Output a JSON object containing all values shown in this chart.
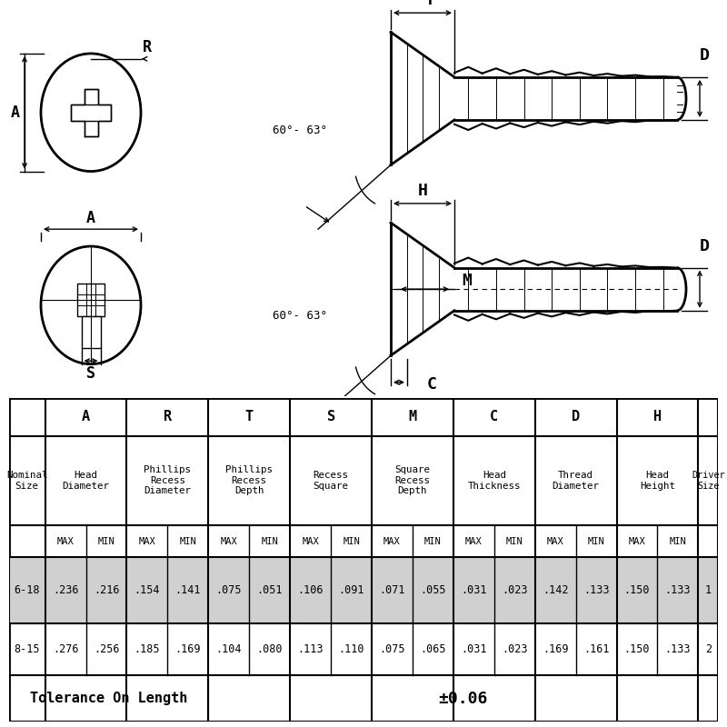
{
  "bg_color": "#ffffff",
  "row1_label": "6-18",
  "row1_data": [
    ".236",
    ".216",
    ".154",
    ".141",
    ".075",
    ".051",
    ".106",
    ".091",
    ".071",
    ".055",
    ".031",
    ".023",
    ".142",
    ".133",
    ".150",
    ".133",
    "1"
  ],
  "row2_label": "8-15",
  "row2_data": [
    ".276",
    ".256",
    ".185",
    ".169",
    ".104",
    ".080",
    ".113",
    ".110",
    ".075",
    ".065",
    ".031",
    ".023",
    ".169",
    ".161",
    ".150",
    ".133",
    "2"
  ],
  "tolerance_label": "Tolerance On Length",
  "tolerance_value": "±0.06",
  "row1_bg": "#d0d0d0",
  "line_color": "#000000",
  "text_color": "#000000"
}
